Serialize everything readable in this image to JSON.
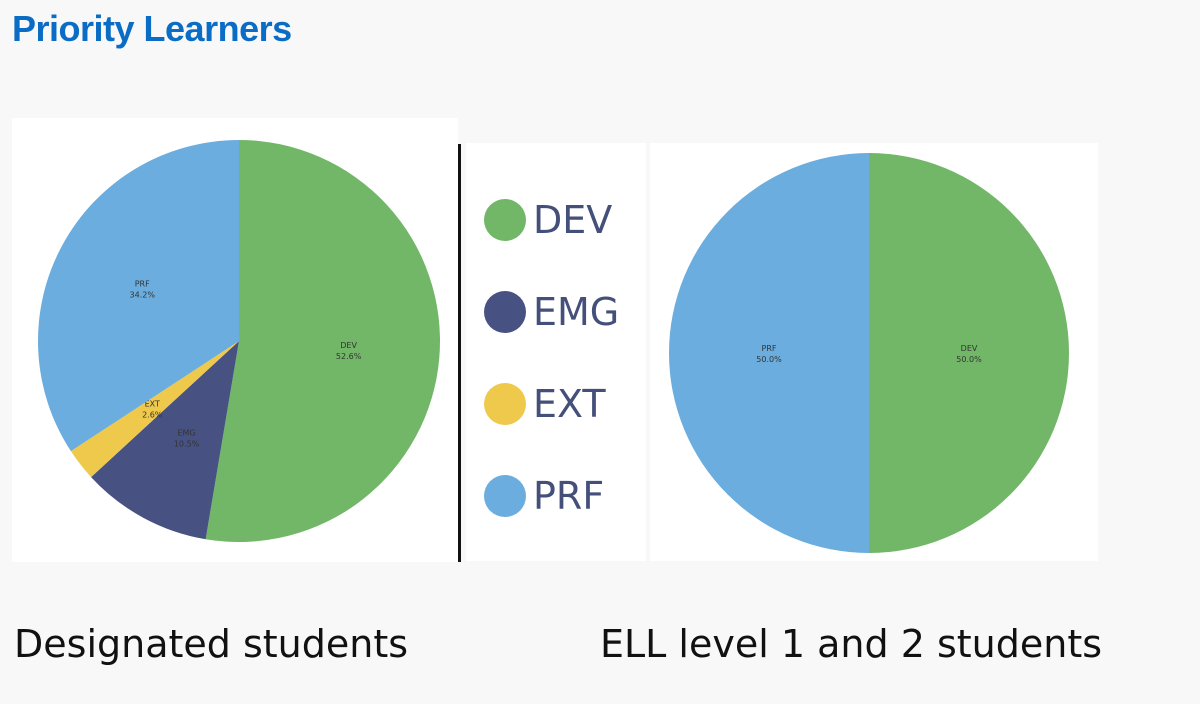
{
  "page": {
    "title": "Priority Learners"
  },
  "legend": [
    {
      "label": "DEV",
      "color": "#71b767"
    },
    {
      "label": "EMG",
      "color": "#475283"
    },
    {
      "label": "EXT",
      "color": "#efc94c"
    },
    {
      "label": "PRF",
      "color": "#6badde"
    }
  ],
  "chart_data": [
    {
      "type": "pie",
      "caption": "Designated students",
      "slices": [
        {
          "label": "DEV",
          "value": 52.6,
          "text": "52.6%",
          "color": "#71b767"
        },
        {
          "label": "EMG",
          "value": 10.5,
          "text": "10.5%",
          "color": "#475283"
        },
        {
          "label": "EXT",
          "value": 2.6,
          "text": "2.6%",
          "color": "#efc94c"
        },
        {
          "label": "PRF",
          "value": 34.2,
          "text": "34.2%",
          "color": "#6badde"
        }
      ]
    },
    {
      "type": "pie",
      "caption": "ELL level 1 and 2 students",
      "slices": [
        {
          "label": "DEV",
          "value": 50.0,
          "text": "50.0%",
          "color": "#71b767"
        },
        {
          "label": "PRF",
          "value": 50.0,
          "text": "50.0%",
          "color": "#6badde"
        }
      ]
    }
  ]
}
